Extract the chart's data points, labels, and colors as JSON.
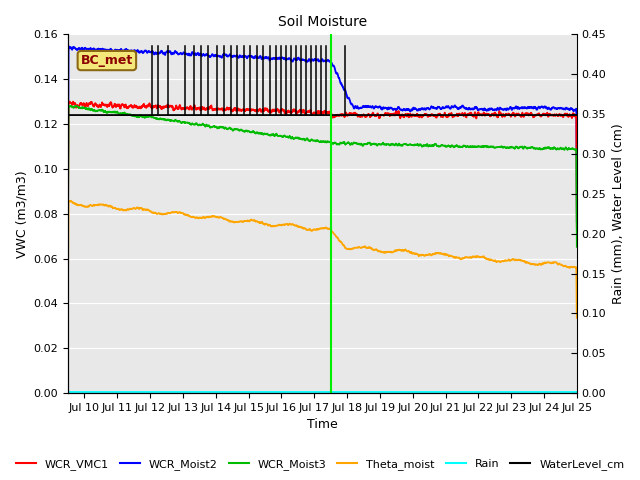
{
  "title": "Soil Moisture",
  "ylabel_left": "VWC (m3/m3)",
  "ylabel_right": "Rain (mm), Water Level (cm)",
  "xlabel": "Time",
  "ylim_left": [
    0.0,
    0.16
  ],
  "ylim_right": [
    0.0,
    0.45
  ],
  "yticks_left": [
    0.0,
    0.02,
    0.04,
    0.06,
    0.08,
    0.1,
    0.12,
    0.14,
    0.16
  ],
  "yticks_right": [
    0.0,
    0.05,
    0.1,
    0.15,
    0.2,
    0.25,
    0.3,
    0.35,
    0.4,
    0.45
  ],
  "xlim": [
    9.5,
    25.0
  ],
  "xtick_labels": [
    "Jul 10",
    "Jul 11",
    "Jul 12",
    "Jul 13",
    "Jul 14",
    "Jul 15",
    "Jul 16",
    "Jul 17",
    "Jul 18",
    "Jul 19",
    "Jul 20",
    "Jul 21",
    "Jul 22",
    "Jul 23",
    "Jul 24",
    "Jul 25"
  ],
  "xtick_positions": [
    10,
    11,
    12,
    13,
    14,
    15,
    16,
    17,
    18,
    19,
    20,
    21,
    22,
    23,
    24,
    25
  ],
  "vline_x": 17.5,
  "vline_color": "#00ee00",
  "bc_met_label": "BC_met",
  "plot_bg_color": "#e8e8e8",
  "fig_bg_color": "#ffffff",
  "title_fontsize": 10,
  "axis_fontsize": 9,
  "tick_fontsize": 8,
  "legend_fontsize": 8
}
